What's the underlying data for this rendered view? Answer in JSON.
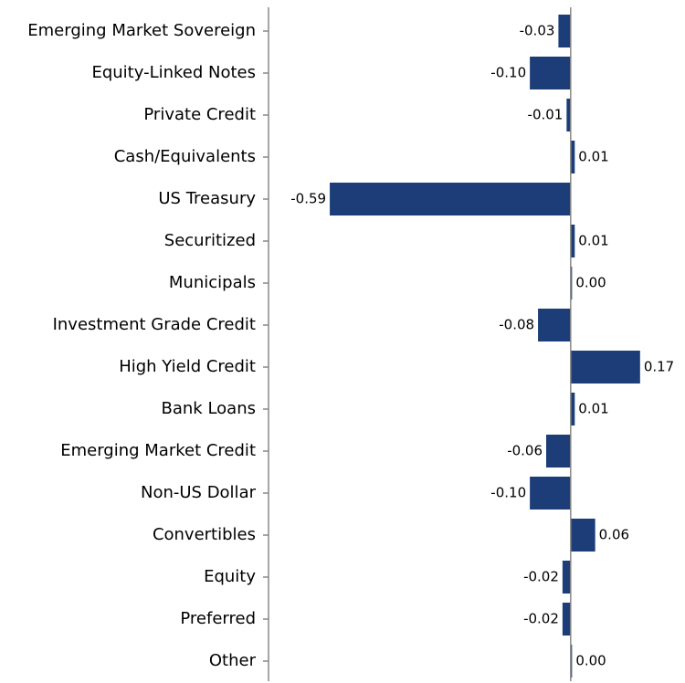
{
  "chart_data": {
    "type": "barh",
    "categories": [
      "Emerging Market Sovereign",
      "Equity-Linked Notes",
      "Private Credit",
      "Cash/Equivalents",
      "US Treasury",
      "Securitized",
      "Municipals",
      "Investment Grade Credit",
      "High Yield Credit",
      "Bank Loans",
      "Emerging Market Credit",
      "Non-US Dollar",
      "Convertibles",
      "Equity",
      "Preferred",
      "Other"
    ],
    "values": [
      -0.03,
      -0.1,
      -0.01,
      0.01,
      -0.59,
      0.01,
      0.0,
      -0.08,
      0.17,
      0.01,
      -0.06,
      -0.1,
      0.06,
      -0.02,
      -0.02,
      0.0
    ],
    "value_labels": [
      "-0.03",
      "-0.10",
      "-0.01",
      "0.01",
      "-0.59",
      "0.01",
      "0.00",
      "-0.08",
      "0.17",
      "0.01",
      "-0.06",
      "-0.10",
      "0.06",
      "-0.02",
      "-0.02",
      "0.00"
    ],
    "color": "#1c3d78",
    "xlim": [
      -0.74,
      0.28
    ]
  }
}
